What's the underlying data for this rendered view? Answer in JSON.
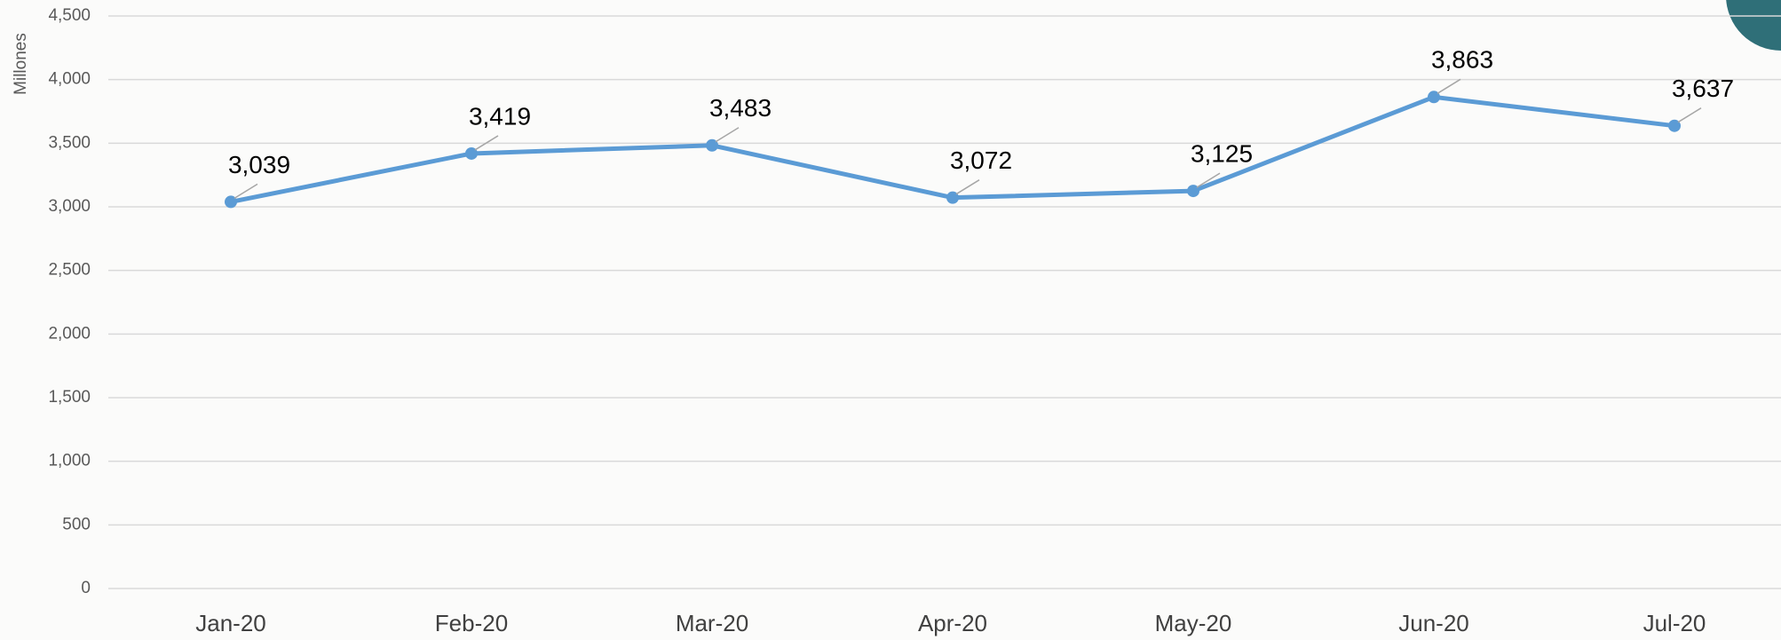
{
  "chart_data": {
    "type": "line",
    "y_label": "Millones",
    "categories": [
      "Jan-20",
      "Feb-20",
      "Mar-20",
      "Apr-20",
      "May-20",
      "Jun-20",
      "Jul-20"
    ],
    "series": [
      {
        "name": "Millones",
        "color": "#5b9bd5",
        "values": [
          3039,
          3419,
          3483,
          3072,
          3125,
          3863,
          3637
        ],
        "value_labels": [
          "3,039",
          "3,419",
          "3,483",
          "3,072",
          "3,125",
          "3,863",
          "3,637"
        ]
      }
    ],
    "ylim": [
      0,
      4500
    ],
    "yticks": [
      0,
      500,
      {
        "value": 1000,
        "label": "1,000"
      },
      {
        "value": 1500,
        "label": "1,500"
      },
      {
        "value": 2000,
        "label": "2,000"
      },
      {
        "value": 2500,
        "label": "2,500"
      },
      {
        "value": 3000,
        "label": "3,000"
      },
      {
        "value": 3500,
        "label": "3,500"
      },
      {
        "value": 4000,
        "label": "4,000"
      },
      {
        "value": 4500,
        "label": "4,500"
      }
    ],
    "grid": true
  }
}
